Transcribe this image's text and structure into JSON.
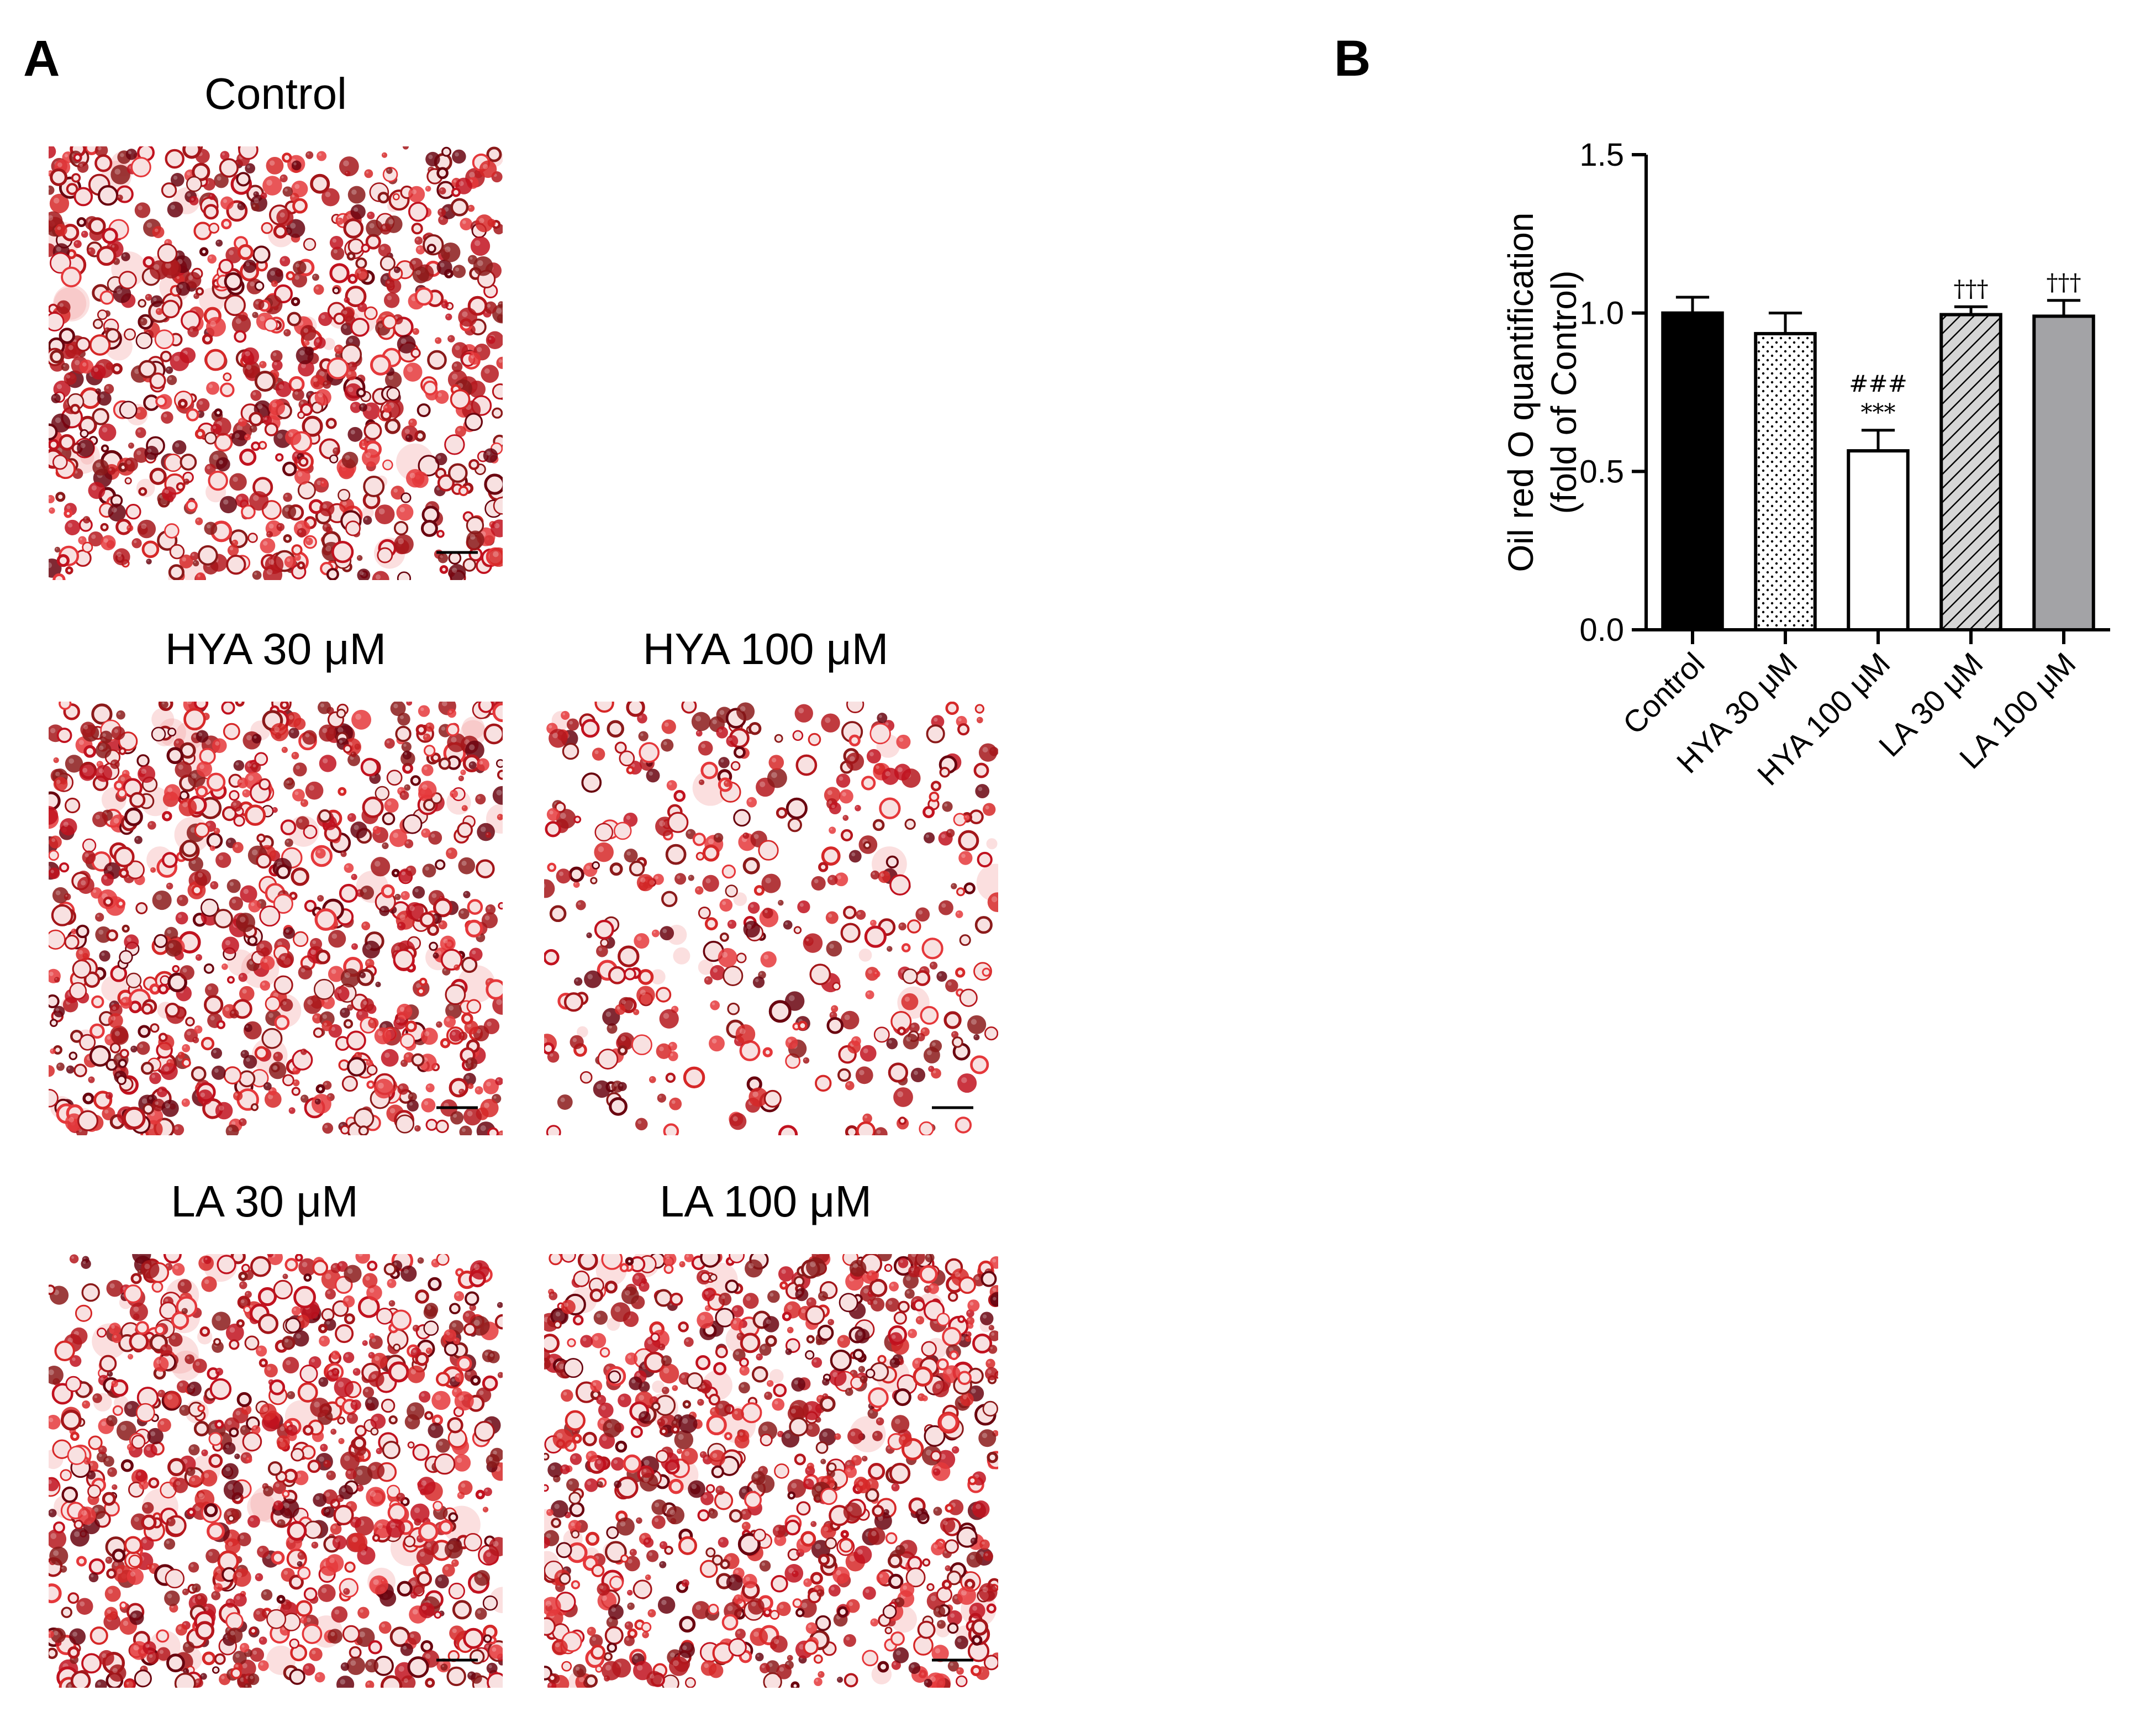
{
  "panel_a": {
    "letter": "A",
    "images": [
      {
        "title": "Control",
        "description": "Oil red O stained cells, dense staining",
        "seed": 11,
        "density": 1.0
      },
      {
        "title": "HYA 30 μM",
        "description": "Oil red O stained cells, dense staining",
        "seed": 23,
        "density": 0.95
      },
      {
        "title": "HYA 100 μM",
        "description": "Oil red O stained cells, sparse staining",
        "seed": 37,
        "density": 0.45
      },
      {
        "title": "LA 30 μM",
        "description": "Oil red O stained cells, dense staining",
        "seed": 51,
        "density": 1.0
      },
      {
        "title": "LA 100 μM",
        "description": "Oil red O stained cells, dense staining",
        "seed": 67,
        "density": 1.0
      }
    ]
  },
  "panel_b": {
    "letter": "B"
  },
  "chart_data": {
    "type": "bar",
    "title": "",
    "xlabel": "",
    "ylabel_line1": "Oil red O quantification",
    "ylabel_line2": "(fold of Control)",
    "ylim": [
      0,
      1.5
    ],
    "yticks": [
      "0.0",
      "0.5",
      "1.0",
      "1.5"
    ],
    "ytick_values": [
      0,
      0.5,
      1.0,
      1.5
    ],
    "categories": [
      "Control",
      "HYA 30 μM",
      "HYA 100 μM",
      "LA 30 μM",
      "LA 100 μM"
    ],
    "values": [
      1.0,
      0.935,
      0.565,
      0.995,
      0.99
    ],
    "errors": [
      0.05,
      0.065,
      0.065,
      0.025,
      0.05
    ],
    "fills": [
      "solid-black",
      "dots",
      "white",
      "hatch",
      "solid-gray"
    ],
    "annotations": [
      {
        "category": "HYA 100 μM",
        "lines": [
          "###",
          "***"
        ]
      },
      {
        "category": "LA 30 μM",
        "lines": [
          "†††"
        ]
      },
      {
        "category": "LA 100 μM",
        "lines": [
          "†††"
        ]
      }
    ],
    "colors": {
      "black": "#000000",
      "gray": "#a3a3a6",
      "white": "#ffffff"
    }
  }
}
